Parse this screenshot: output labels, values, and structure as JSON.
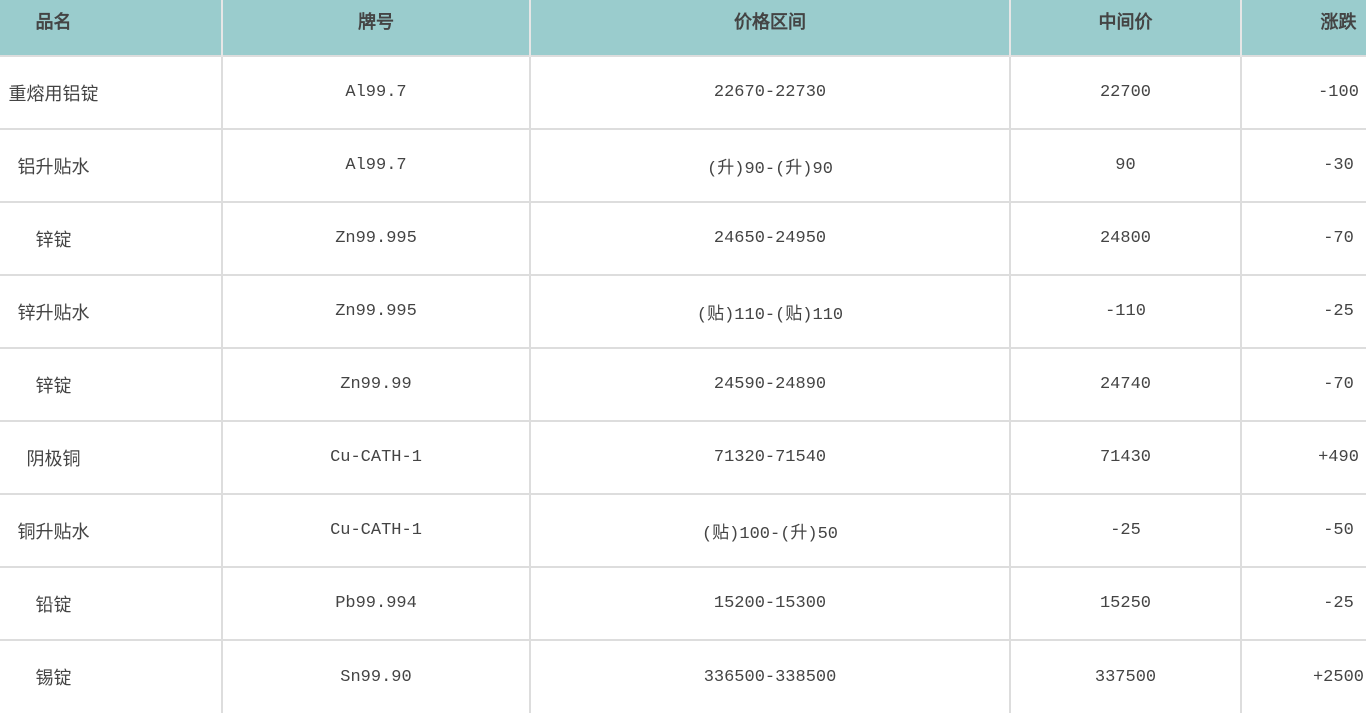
{
  "table": {
    "headers": [
      "品名",
      "牌号",
      "价格区间",
      "中间价",
      "涨跌"
    ],
    "rows": [
      {
        "name": "重熔用铝锭",
        "grade": "Al99.7",
        "range": "22670-22730",
        "mid": "22700",
        "change": "-100"
      },
      {
        "name": "铝升贴水",
        "grade": "Al99.7",
        "range": "(升)90-(升)90",
        "mid": "90",
        "change": "-30"
      },
      {
        "name": "锌锭",
        "grade": "Zn99.995",
        "range": "24650-24950",
        "mid": "24800",
        "change": "-70"
      },
      {
        "name": "锌升贴水",
        "grade": "Zn99.995",
        "range": "(贴)110-(贴)110",
        "mid": "-110",
        "change": "-25"
      },
      {
        "name": "锌锭",
        "grade": "Zn99.99",
        "range": "24590-24890",
        "mid": "24740",
        "change": "-70"
      },
      {
        "name": "阴极铜",
        "grade": "Cu-CATH-1",
        "range": "71320-71540",
        "mid": "71430",
        "change": "+490"
      },
      {
        "name": "铜升贴水",
        "grade": "Cu-CATH-1",
        "range": "(贴)100-(升)50",
        "mid": "-25",
        "change": "-50"
      },
      {
        "name": "铅锭",
        "grade": "Pb99.994",
        "range": "15200-15300",
        "mid": "15250",
        "change": "-25"
      },
      {
        "name": "锡锭",
        "grade": "Sn99.90",
        "range": "336500-338500",
        "mid": "337500",
        "change": "+2500"
      }
    ]
  },
  "colors": {
    "header_bg": "#9acccd",
    "text": "#444444"
  }
}
